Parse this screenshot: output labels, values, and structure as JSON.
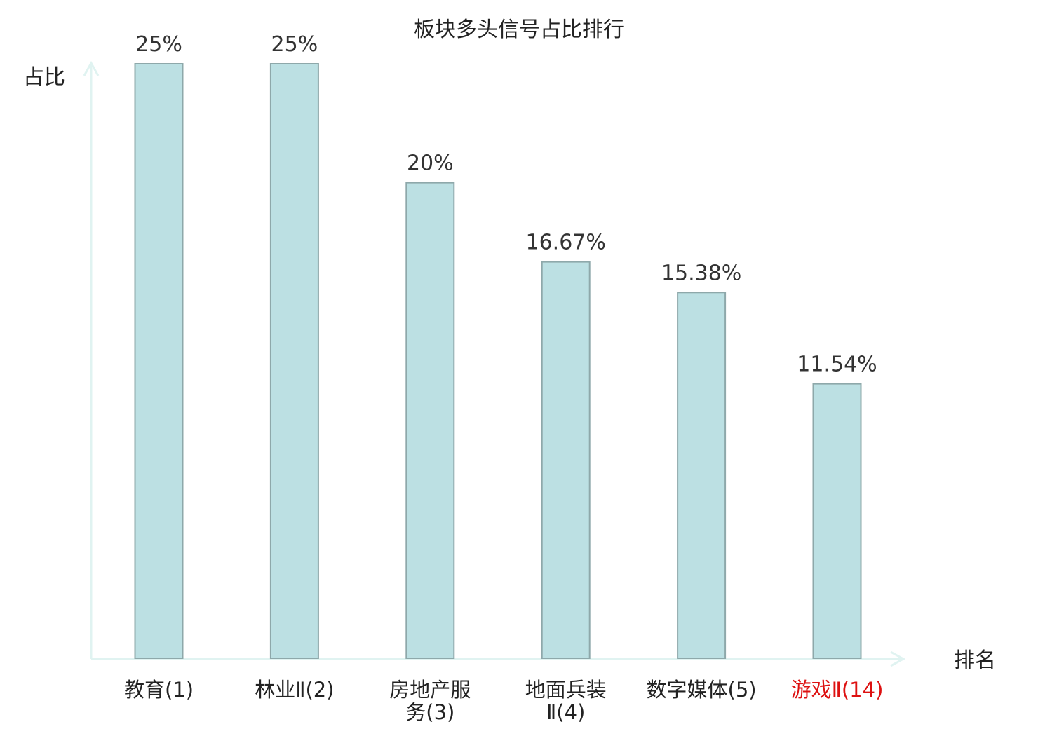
{
  "chart_data": {
    "type": "bar",
    "title": "板块多头信号占比排行",
    "ylabel": "占比",
    "xlabel": "排名",
    "ylim": [
      0,
      25
    ],
    "grid": false,
    "categories": [
      {
        "lines": [
          "教育(1)"
        ],
        "highlight": false
      },
      {
        "lines": [
          "林业Ⅱ(2)"
        ],
        "highlight": false
      },
      {
        "lines": [
          "房地产服",
          "务(3)"
        ],
        "highlight": false
      },
      {
        "lines": [
          "地面兵装",
          "Ⅱ(4)"
        ],
        "highlight": false
      },
      {
        "lines": [
          "数字媒体(5)"
        ],
        "highlight": false
      },
      {
        "lines": [
          "游戏Ⅱ(14)"
        ],
        "highlight": true
      }
    ],
    "values": [
      25,
      25,
      20,
      16.67,
      15.38,
      11.54
    ],
    "value_labels": [
      "25%",
      "25%",
      "20%",
      "16.67%",
      "15.38%",
      "11.54%"
    ],
    "colors": {
      "bar_fill": "#bce0e3",
      "bar_stroke": "#8ea8aa",
      "axis": "#e0f3f1",
      "highlight_label": "#dd1111",
      "normal_label": "#222222"
    }
  }
}
